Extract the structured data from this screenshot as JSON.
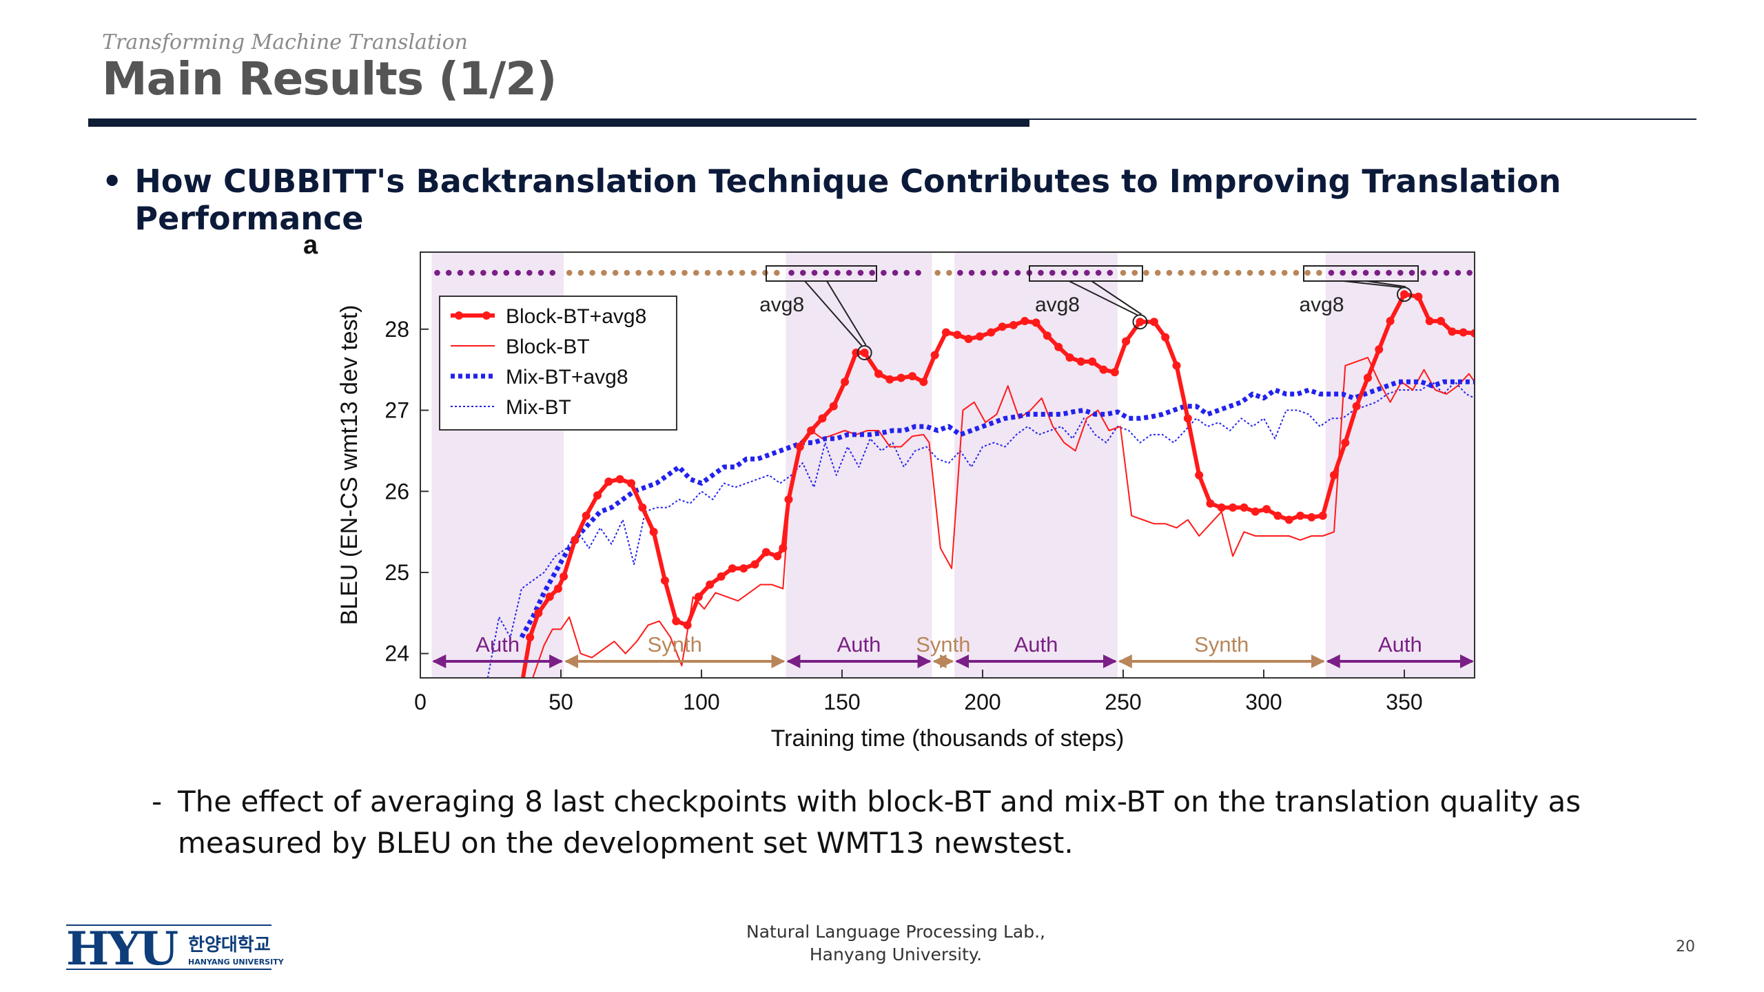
{
  "header": {
    "supertitle": "Transforming Machine Translation",
    "title": "Main Results (1/2)"
  },
  "bullet": {
    "marker": "•",
    "text": "How CUBBITT's Backtranslation Technique Contributes to Improving Translation Performance"
  },
  "description": {
    "marker": "-",
    "text": "The effect of averaging 8 last checkpoints with block-BT and mix-BT on the translation quality as measured by BLEU on the development set WMT13 newstest."
  },
  "footer": {
    "lab_line1": "Natural Language Processing Lab.,",
    "lab_line2": "Hanyang University.",
    "page_number": "20",
    "logo_text": "HYU",
    "logo_korean": "한양대학교",
    "logo_english": "HANYANG UNIVERSITY"
  },
  "colors": {
    "title": "#555555",
    "bullet": "#0c1a3a",
    "rule": "#0f1d36",
    "block_bt": "#ff1a1a",
    "mix_bt": "#2222ee",
    "auth_shade": "#f1e6f3",
    "auth_arrow": "#7a1f86",
    "synth_arrow": "#b8865a"
  },
  "chart_data": {
    "type": "line",
    "panel_label": "a",
    "xlabel": "Training time (thousands of steps)",
    "ylabel": "BLEU (EN-CS wmt13 dev test)",
    "xlim": [
      0,
      375
    ],
    "ylim": [
      23.7,
      28.95
    ],
    "xticks": [
      0,
      50,
      100,
      150,
      200,
      250,
      300,
      350
    ],
    "yticks": [
      24,
      25,
      26,
      27,
      28
    ],
    "legend_position": "top-left",
    "regions": [
      {
        "label": "Auth",
        "start": 4,
        "end": 51
      },
      {
        "label": "Synth",
        "start": 51,
        "end": 130
      },
      {
        "label": "Auth",
        "start": 130,
        "end": 182
      },
      {
        "label": "Synth",
        "start": 182,
        "end": 190
      },
      {
        "label": "Auth",
        "start": 190,
        "end": 248
      },
      {
        "label": "Synth",
        "start": 248,
        "end": 322
      },
      {
        "label": "Auth",
        "start": 322,
        "end": 375
      }
    ],
    "annotations": [
      {
        "text": "avg8",
        "target": [
          158,
          27.71
        ]
      },
      {
        "text": "avg8",
        "target": [
          256,
          28.09
        ]
      },
      {
        "text": "avg8",
        "target": [
          350,
          28.43
        ]
      }
    ],
    "series": [
      {
        "name": "Block-BT+avg8",
        "style": "thick-solid-markers",
        "x": [
          36,
          39,
          42,
          46,
          49,
          51,
          55,
          59,
          63,
          67,
          71,
          75,
          79,
          83,
          87,
          91,
          95,
          99,
          103,
          107,
          111,
          115,
          119,
          123,
          127,
          129,
          131,
          135,
          139,
          143,
          147,
          151,
          155,
          158,
          163,
          167,
          171,
          175,
          179,
          183,
          187,
          191,
          195,
          199,
          203,
          207,
          211,
          215,
          219,
          223,
          227,
          231,
          235,
          239,
          243,
          247,
          251,
          256,
          261,
          265,
          269,
          273,
          277,
          281,
          285,
          289,
          293,
          297,
          301,
          305,
          309,
          313,
          317,
          321,
          325,
          329,
          333,
          337,
          341,
          345,
          350,
          355,
          359,
          363,
          367,
          371,
          375
        ],
        "y": [
          23.6,
          24.2,
          24.5,
          24.7,
          24.8,
          24.95,
          25.4,
          25.7,
          25.95,
          26.12,
          26.15,
          26.1,
          25.8,
          25.5,
          24.9,
          24.4,
          24.35,
          24.7,
          24.85,
          24.95,
          25.05,
          25.05,
          25.1,
          25.25,
          25.2,
          25.3,
          25.9,
          26.55,
          26.75,
          26.9,
          27.05,
          27.35,
          27.71,
          27.71,
          27.45,
          27.38,
          27.4,
          27.42,
          27.35,
          27.68,
          27.96,
          27.93,
          27.88,
          27.91,
          27.96,
          28.03,
          28.05,
          28.1,
          28.08,
          27.92,
          27.78,
          27.65,
          27.6,
          27.6,
          27.5,
          27.47,
          27.85,
          28.09,
          28.09,
          27.9,
          27.55,
          26.9,
          26.2,
          25.85,
          25.8,
          25.8,
          25.8,
          25.75,
          25.78,
          25.7,
          25.65,
          25.7,
          25.68,
          25.7,
          26.2,
          26.6,
          27.05,
          27.4,
          27.75,
          28.1,
          28.43,
          28.4,
          28.1,
          28.1,
          27.97,
          27.96,
          27.95
        ]
      },
      {
        "name": "Block-BT",
        "style": "thin-solid",
        "x": [
          40,
          44,
          47,
          50,
          53,
          57,
          61,
          65,
          69,
          73,
          77,
          81,
          85,
          89,
          93,
          97,
          101,
          105,
          109,
          113,
          117,
          121,
          125,
          129,
          131,
          135,
          139,
          143,
          147,
          151,
          155,
          159,
          163,
          167,
          171,
          175,
          179,
          181,
          185,
          189,
          193,
          197,
          201,
          205,
          209,
          213,
          217,
          221,
          225,
          229,
          233,
          237,
          241,
          245,
          249,
          253,
          257,
          261,
          265,
          269,
          273,
          277,
          281,
          285,
          289,
          293,
          297,
          301,
          305,
          309,
          313,
          317,
          321,
          325,
          329,
          333,
          337,
          341,
          345,
          349,
          353,
          357,
          361,
          365,
          369,
          373,
          375
        ],
        "y": [
          23.7,
          24.1,
          24.3,
          24.3,
          24.45,
          24.0,
          23.95,
          24.05,
          24.15,
          24.0,
          24.15,
          24.35,
          24.4,
          24.2,
          23.85,
          24.7,
          24.55,
          24.75,
          24.7,
          24.65,
          24.75,
          24.85,
          24.85,
          24.8,
          25.8,
          26.6,
          26.75,
          26.65,
          26.7,
          26.75,
          26.7,
          26.75,
          26.75,
          26.55,
          26.55,
          26.68,
          26.7,
          26.6,
          25.3,
          25.05,
          27.0,
          27.1,
          26.85,
          26.95,
          27.3,
          26.9,
          27.0,
          27.15,
          26.8,
          26.6,
          26.5,
          26.9,
          27.0,
          26.75,
          26.8,
          25.7,
          25.65,
          25.6,
          25.6,
          25.55,
          25.65,
          25.45,
          25.6,
          25.75,
          25.2,
          25.5,
          25.45,
          25.45,
          25.45,
          25.45,
          25.4,
          25.45,
          25.45,
          25.5,
          27.55,
          27.6,
          27.65,
          27.35,
          27.1,
          27.35,
          27.25,
          27.5,
          27.25,
          27.2,
          27.3,
          27.45,
          27.35
        ]
      },
      {
        "name": "Mix-BT+avg8",
        "style": "thick-dotted",
        "x": [
          36,
          40,
          44,
          48,
          52,
          56,
          60,
          64,
          68,
          72,
          76,
          80,
          84,
          88,
          92,
          96,
          100,
          104,
          108,
          112,
          116,
          120,
          124,
          128,
          132,
          136,
          140,
          144,
          148,
          152,
          156,
          160,
          164,
          168,
          172,
          176,
          180,
          184,
          188,
          192,
          196,
          200,
          204,
          208,
          212,
          216,
          220,
          224,
          228,
          232,
          236,
          240,
          244,
          248,
          252,
          256,
          260,
          264,
          268,
          272,
          276,
          280,
          284,
          288,
          292,
          296,
          300,
          304,
          308,
          312,
          316,
          320,
          324,
          328,
          332,
          336,
          340,
          344,
          348,
          352,
          356,
          360,
          364,
          368,
          372,
          375
        ],
        "y": [
          24.2,
          24.45,
          24.75,
          25.0,
          25.25,
          25.45,
          25.6,
          25.75,
          25.8,
          25.9,
          26.0,
          26.05,
          26.1,
          26.2,
          26.3,
          26.15,
          26.1,
          26.2,
          26.3,
          26.3,
          26.4,
          26.4,
          26.45,
          26.5,
          26.55,
          26.6,
          26.6,
          26.65,
          26.65,
          26.7,
          26.7,
          26.7,
          26.72,
          26.75,
          26.75,
          26.8,
          26.8,
          26.75,
          26.8,
          26.7,
          26.75,
          26.8,
          26.85,
          26.9,
          26.92,
          26.95,
          26.95,
          26.95,
          26.95,
          26.98,
          27.0,
          26.95,
          26.95,
          26.98,
          26.9,
          26.9,
          26.92,
          26.95,
          27.0,
          27.05,
          27.05,
          26.95,
          27.0,
          27.05,
          27.1,
          27.2,
          27.15,
          27.25,
          27.2,
          27.2,
          27.25,
          27.2,
          27.2,
          27.2,
          27.15,
          27.2,
          27.25,
          27.3,
          27.35,
          27.35,
          27.35,
          27.3,
          27.35,
          27.35,
          27.35,
          27.35
        ]
      },
      {
        "name": "Mix-BT",
        "style": "thin-dotted",
        "x": [
          24,
          28,
          32,
          36,
          40,
          44,
          48,
          52,
          56,
          60,
          64,
          68,
          72,
          76,
          80,
          84,
          88,
          92,
          96,
          100,
          104,
          108,
          112,
          116,
          120,
          124,
          128,
          132,
          136,
          140,
          144,
          148,
          152,
          156,
          160,
          164,
          168,
          172,
          176,
          180,
          184,
          188,
          192,
          196,
          200,
          204,
          208,
          212,
          216,
          220,
          224,
          228,
          232,
          236,
          240,
          244,
          248,
          252,
          256,
          260,
          264,
          268,
          272,
          276,
          280,
          284,
          288,
          292,
          296,
          300,
          304,
          308,
          312,
          316,
          320,
          324,
          328,
          332,
          336,
          340,
          344,
          348,
          352,
          356,
          360,
          364,
          368,
          372,
          375
        ],
        "y": [
          23.7,
          24.45,
          24.2,
          24.8,
          24.9,
          25.0,
          25.2,
          25.3,
          25.5,
          25.3,
          25.55,
          25.35,
          25.65,
          25.1,
          25.75,
          25.8,
          25.8,
          25.9,
          25.85,
          26.0,
          25.9,
          26.1,
          26.05,
          26.1,
          26.15,
          26.2,
          26.1,
          26.2,
          26.35,
          26.05,
          26.6,
          26.2,
          26.55,
          26.3,
          26.65,
          26.5,
          26.6,
          26.3,
          26.5,
          26.55,
          26.4,
          26.35,
          26.5,
          26.3,
          26.55,
          26.6,
          26.55,
          26.7,
          26.8,
          26.7,
          26.75,
          26.8,
          26.65,
          26.9,
          26.7,
          26.6,
          26.8,
          26.75,
          26.6,
          26.7,
          26.7,
          26.6,
          26.75,
          26.9,
          26.8,
          26.85,
          26.75,
          26.9,
          26.8,
          26.9,
          26.65,
          27.0,
          27.0,
          26.95,
          26.8,
          26.9,
          26.9,
          27.0,
          27.05,
          27.1,
          27.2,
          27.25,
          27.25,
          27.25,
          27.35,
          27.2,
          27.35,
          27.2,
          27.15
        ]
      }
    ]
  }
}
